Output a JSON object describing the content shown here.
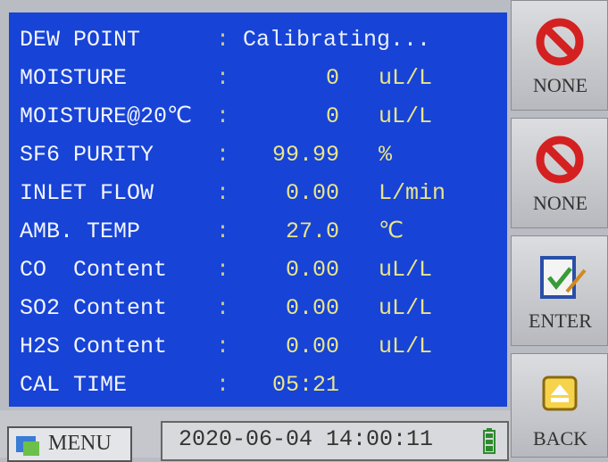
{
  "screen": {
    "rows": [
      {
        "label": "DEW POINT",
        "sep": ":",
        "value": "Calibrating..."
      },
      {
        "label": "MOISTURE",
        "sep": ":",
        "value": "0",
        "unit": "uL/L"
      },
      {
        "label": "MOISTURE@20℃",
        "sep": ":",
        "value": "0",
        "unit": "uL/L"
      },
      {
        "label": "SF6 PURITY",
        "sep": ":",
        "value": "99.99",
        "unit": "%"
      },
      {
        "label": "INLET FLOW",
        "sep": ":",
        "value": "0.00",
        "unit": "L/min"
      },
      {
        "label": "AMB. TEMP",
        "sep": ":",
        "value": "27.0",
        "unit": "℃"
      },
      {
        "label": "CO  Content",
        "sep": ":",
        "value": "0.00",
        "unit": "uL/L"
      },
      {
        "label": "SO2 Content",
        "sep": ":",
        "value": "0.00",
        "unit": "uL/L"
      },
      {
        "label": "H2S Content",
        "sep": ":",
        "value": "0.00",
        "unit": "uL/L"
      },
      {
        "label": "CAL TIME",
        "sep": ":",
        "value": "05:21"
      }
    ],
    "buttons": [
      {
        "label": "NONE",
        "icon": "none"
      },
      {
        "label": "NONE",
        "icon": "none"
      },
      {
        "label": "ENTER",
        "icon": "enter"
      },
      {
        "label": "BACK",
        "icon": "back"
      }
    ],
    "status_bar": {
      "menu": "MENU",
      "datetime": "2020-06-04 14:00:11"
    }
  }
}
